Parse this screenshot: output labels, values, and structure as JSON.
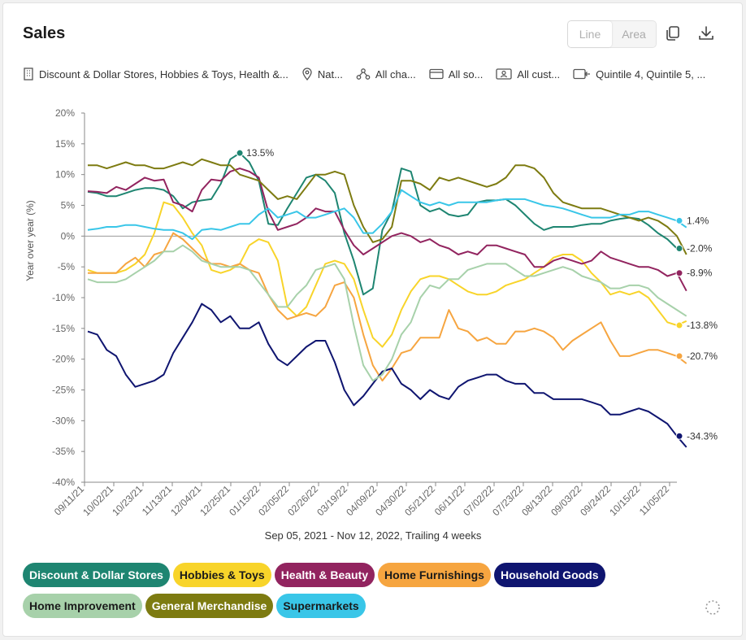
{
  "header": {
    "title": "Sales"
  },
  "toolbar": {
    "line_label": "Line",
    "area_label": "Area"
  },
  "filters": [
    {
      "icon": "building-icon",
      "label": "Discount & Dollar Stores, Hobbies & Toys, Health &..."
    },
    {
      "icon": "location-pin-icon",
      "label": "Nat..."
    },
    {
      "icon": "channels-icon",
      "label": "All cha..."
    },
    {
      "icon": "card-icon",
      "label": "All so..."
    },
    {
      "icon": "customer-id-icon",
      "label": "All cust..."
    },
    {
      "icon": "wallet-icon",
      "label": "Quintile 4, Quintile 5, ..."
    }
  ],
  "chart_data": {
    "type": "line",
    "ylabel": "Year over year (%)",
    "xlabel": "Sep 05, 2021 - Nov 12, 2022, Trailing 4 weeks",
    "ylim": [
      -40,
      20
    ],
    "yticks": [
      "20%",
      "15%",
      "10%",
      "5%",
      "0%",
      "-5%",
      "-10%",
      "-15%",
      "-20%",
      "-25%",
      "-30%",
      "-35%",
      "-40%"
    ],
    "x_tick_labels": [
      "09/11/21",
      "10/02/21",
      "10/23/21",
      "11/13/21",
      "12/04/21",
      "12/25/21",
      "01/15/22",
      "02/05/22",
      "02/26/22",
      "03/19/22",
      "04/09/22",
      "04/30/22",
      "05/21/22",
      "06/11/22",
      "07/02/22",
      "07/23/22",
      "08/13/22",
      "09/03/22",
      "09/24/22",
      "10/15/22",
      "11/05/22"
    ],
    "grid": false,
    "series": [
      {
        "name": "Discount & Dollar Stores",
        "color": "#1e8571",
        "end_label": "-2.0%",
        "values": [
          7.2,
          7.0,
          6.5,
          6.5,
          7.0,
          7.5,
          7.8,
          7.8,
          7.5,
          6.5,
          4.5,
          5.5,
          5.8,
          6.0,
          8.5,
          12.5,
          13.5,
          12.0,
          9.0,
          2.0,
          1.8,
          4.5,
          7.0,
          9.5,
          10.0,
          9.0,
          7.0,
          0.5,
          -4.0,
          -9.5,
          -8.5,
          1.0,
          4.0,
          11.0,
          10.5,
          5.0,
          4.0,
          4.5,
          3.5,
          3.2,
          3.5,
          5.5,
          5.8,
          5.8,
          6.0,
          5.0,
          3.5,
          2.0,
          1.0,
          1.5,
          1.5,
          1.5,
          1.8,
          2.0,
          2.0,
          2.5,
          2.8,
          3.0,
          2.8,
          1.8,
          0.5,
          -0.5,
          -2.0
        ]
      },
      {
        "name": "Hobbies & Toys",
        "color": "#f8d42a",
        "end_label": "-13.8%",
        "values": [
          -5.5,
          -6.0,
          -6.0,
          -6.0,
          -5.5,
          -4.5,
          -3.0,
          0.5,
          5.5,
          5.0,
          3.0,
          0.5,
          -1.5,
          -5.5,
          -6.0,
          -5.5,
          -4.5,
          -1.5,
          -0.5,
          -1.0,
          -4.0,
          -11.5,
          -13.0,
          -11.5,
          -8.0,
          -4.5,
          -4.0,
          -4.5,
          -7.0,
          -12.0,
          -16.5,
          -18.0,
          -16.0,
          -12.0,
          -9.0,
          -7.0,
          -6.5,
          -6.5,
          -7.0,
          -8.0,
          -9.0,
          -9.5,
          -9.5,
          -9.0,
          -8.0,
          -7.5,
          -7.0,
          -6.0,
          -5.0,
          -3.5,
          -3.0,
          -3.0,
          -4.0,
          -6.0,
          -7.5,
          -9.5,
          -9.0,
          -9.5,
          -9.0,
          -10.0,
          -12.0,
          -14.0,
          -14.5,
          -13.8
        ]
      },
      {
        "name": "Health & Beauty",
        "color": "#92245f",
        "end_label": "-8.9%",
        "values": [
          7.3,
          7.2,
          7.0,
          8.0,
          7.5,
          8.5,
          9.5,
          9.0,
          9.2,
          5.5,
          5.0,
          4.0,
          7.5,
          9.2,
          9.0,
          10.5,
          11.0,
          10.5,
          9.5,
          4.0,
          1.0,
          1.5,
          2.0,
          3.0,
          4.5,
          4.0,
          4.0,
          1.0,
          -1.5,
          -3.0,
          -2.0,
          -1.0,
          0.0,
          0.5,
          0.0,
          -1.0,
          -0.5,
          -1.5,
          -2.0,
          -3.0,
          -2.5,
          -3.0,
          -1.5,
          -1.5,
          -2.0,
          -2.5,
          -3.0,
          -5.0,
          -5.0,
          -4.0,
          -3.5,
          -4.0,
          -4.5,
          -4.0,
          -2.5,
          -3.5,
          -4.0,
          -4.5,
          -5.0,
          -5.0,
          -5.5,
          -6.5,
          -6.0,
          -8.9
        ]
      },
      {
        "name": "Home Furnishings",
        "color": "#f6a540",
        "end_label": "-20.7%",
        "values": [
          -6.0,
          -6.0,
          -6.0,
          -6.0,
          -4.5,
          -3.5,
          -5.0,
          -3.0,
          -2.5,
          0.5,
          -0.5,
          -2.0,
          -3.5,
          -4.5,
          -4.5,
          -5.0,
          -4.5,
          -5.5,
          -6.0,
          -9.5,
          -12.0,
          -13.5,
          -13.0,
          -12.5,
          -13.0,
          -11.5,
          -8.0,
          -7.5,
          -10.0,
          -16.0,
          -21.0,
          -23.5,
          -21.5,
          -19.0,
          -18.5,
          -16.5,
          -16.5,
          -16.5,
          -12.0,
          -15.0,
          -15.5,
          -17.0,
          -16.5,
          -17.5,
          -17.5,
          -15.5,
          -15.5,
          -15.0,
          -15.5,
          -16.5,
          -18.5,
          -17.0,
          -16.0,
          -15.0,
          -14.0,
          -17.0,
          -19.5,
          -19.5,
          -19.0,
          -18.5,
          -18.5,
          -19.0,
          -19.5,
          -20.7
        ]
      },
      {
        "name": "Household Goods",
        "color": "#0f1570",
        "end_label": "-34.3%",
        "values": [
          -15.5,
          -16.0,
          -18.5,
          -19.5,
          -22.5,
          -24.5,
          -24.0,
          -23.5,
          -22.5,
          -19.0,
          -16.5,
          -14.0,
          -11.0,
          -12.0,
          -14.0,
          -13.0,
          -15.0,
          -15.0,
          -14.0,
          -17.5,
          -20.0,
          -21.0,
          -19.5,
          -18.0,
          -17.0,
          -17.0,
          -20.5,
          -25.0,
          -27.5,
          -26.0,
          -24.0,
          -22.0,
          -21.5,
          -24.0,
          -25.0,
          -26.5,
          -25.0,
          -26.0,
          -26.5,
          -24.5,
          -23.5,
          -23.0,
          -22.5,
          -22.5,
          -23.5,
          -24.0,
          -24.0,
          -25.5,
          -25.5,
          -26.5,
          -26.5,
          -26.5,
          -26.5,
          -27.0,
          -27.5,
          -29.0,
          -29.0,
          -28.5,
          -28.0,
          -28.5,
          -29.5,
          -30.5,
          -32.5,
          -34.3
        ]
      },
      {
        "name": "Home Improvement",
        "color": "#a7d1aa",
        "end_label": "",
        "values": [
          -7.0,
          -7.5,
          -7.5,
          -7.5,
          -7.0,
          -6.0,
          -5.0,
          -4.0,
          -2.5,
          -2.5,
          -1.5,
          -2.5,
          -4.0,
          -4.5,
          -5.0,
          -5.0,
          -5.0,
          -5.5,
          -7.5,
          -9.5,
          -11.5,
          -11.5,
          -9.5,
          -8.0,
          -5.5,
          -5.0,
          -4.5,
          -7.0,
          -14.5,
          -21.0,
          -23.5,
          -22.5,
          -20.0,
          -16.0,
          -14.0,
          -10.0,
          -8.0,
          -8.5,
          -7.0,
          -7.0,
          -5.5,
          -5.0,
          -4.5,
          -4.5,
          -4.5,
          -5.5,
          -6.5,
          -6.5,
          -6.0,
          -5.5,
          -5.0,
          -5.5,
          -6.5,
          -7.0,
          -7.5,
          -8.5,
          -8.5,
          -8.0,
          -8.0,
          -8.5,
          -10.0,
          -11.0,
          -12.0,
          -13.0
        ]
      },
      {
        "name": "General Merchandise",
        "color": "#7d7b11",
        "end_label": "",
        "values": [
          11.5,
          11.5,
          11.0,
          11.5,
          12.0,
          11.5,
          11.5,
          11.0,
          11.0,
          11.5,
          12.0,
          11.5,
          12.5,
          12.0,
          11.5,
          11.5,
          10.0,
          9.5,
          9.0,
          7.5,
          6.0,
          6.5,
          6.0,
          8.0,
          10.0,
          10.0,
          10.5,
          10.0,
          5.0,
          1.5,
          -1.0,
          -0.5,
          1.5,
          9.0,
          9.0,
          8.5,
          7.5,
          9.5,
          9.0,
          9.5,
          9.0,
          8.5,
          8.0,
          8.5,
          9.5,
          11.5,
          11.5,
          11.0,
          9.5,
          7.0,
          5.5,
          5.0,
          4.5,
          4.5,
          4.5,
          4.0,
          3.5,
          3.0,
          2.5,
          3.0,
          2.5,
          1.5,
          0.0,
          -3.0
        ]
      },
      {
        "name": "Supermarkets",
        "color": "#39c6e8",
        "end_label": "1.4%",
        "values": [
          1.0,
          1.2,
          1.5,
          1.5,
          1.8,
          1.8,
          1.5,
          1.2,
          1.0,
          1.0,
          0.5,
          -0.5,
          1.0,
          1.2,
          1.0,
          1.5,
          2.0,
          2.0,
          3.5,
          4.5,
          3.0,
          3.5,
          4.0,
          3.0,
          3.0,
          3.5,
          4.0,
          4.5,
          3.0,
          0.5,
          0.5,
          2.0,
          4.0,
          7.5,
          6.5,
          5.5,
          5.0,
          5.5,
          5.0,
          5.5,
          5.5,
          5.5,
          5.5,
          5.8,
          6.0,
          6.0,
          6.0,
          5.5,
          5.0,
          4.8,
          4.5,
          4.0,
          3.5,
          3.0,
          3.0,
          3.0,
          3.5,
          3.5,
          4.0,
          4.0,
          3.5,
          3.0,
          2.5,
          1.4
        ]
      }
    ]
  }
}
